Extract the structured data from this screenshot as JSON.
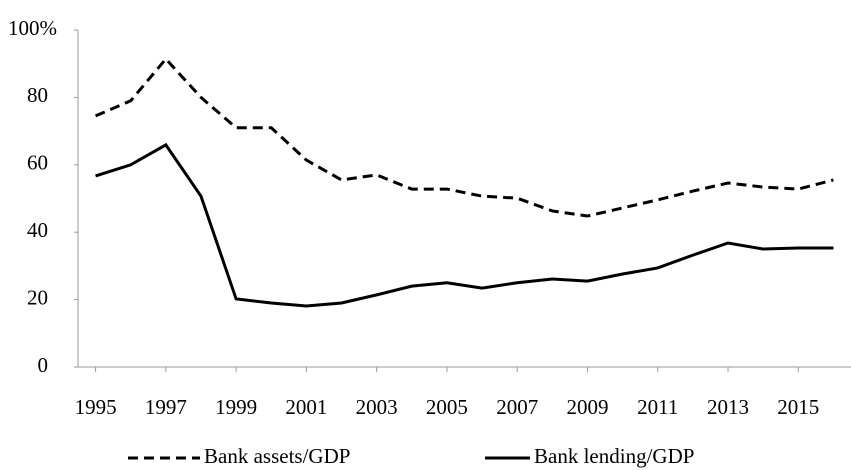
{
  "chart_data": {
    "type": "line",
    "x": [
      1995,
      1996,
      1997,
      1998,
      1999,
      2000,
      2001,
      2002,
      2003,
      2004,
      2005,
      2006,
      2007,
      2008,
      2009,
      2010,
      2011,
      2012,
      2013,
      2014,
      2015,
      2016
    ],
    "series": [
      {
        "name": "Bank assets/GDP",
        "color": "#000000",
        "dash": "dashed",
        "values": [
          74.5,
          79,
          91.4,
          80,
          71,
          71,
          61.4,
          55.5,
          57,
          52.8,
          52.8,
          50.7,
          50.1,
          46.3,
          44.8,
          47.2,
          49.6,
          52.2,
          54.6,
          53.4,
          52.8,
          55.5
        ]
      },
      {
        "name": "Bank lending/GDP",
        "color": "#000000",
        "dash": "solid",
        "values": [
          56.7,
          60,
          65.9,
          50.7,
          20.2,
          19,
          18.1,
          19,
          21.4,
          24,
          25,
          23.4,
          25,
          26.1,
          25.5,
          27.6,
          29.4,
          33.2,
          36.8,
          35,
          35.3,
          35.3
        ]
      }
    ],
    "xlim": [
      1994.5,
      2016.5
    ],
    "xticks": [
      1995,
      1997,
      1999,
      2001,
      2003,
      2005,
      2007,
      2009,
      2011,
      2013,
      2015
    ],
    "ylim": [
      0,
      100
    ],
    "yticks": [
      0,
      20,
      40,
      60,
      80,
      {
        "value": 100,
        "label": "100%"
      }
    ],
    "legend": "bottom",
    "grid": false
  }
}
